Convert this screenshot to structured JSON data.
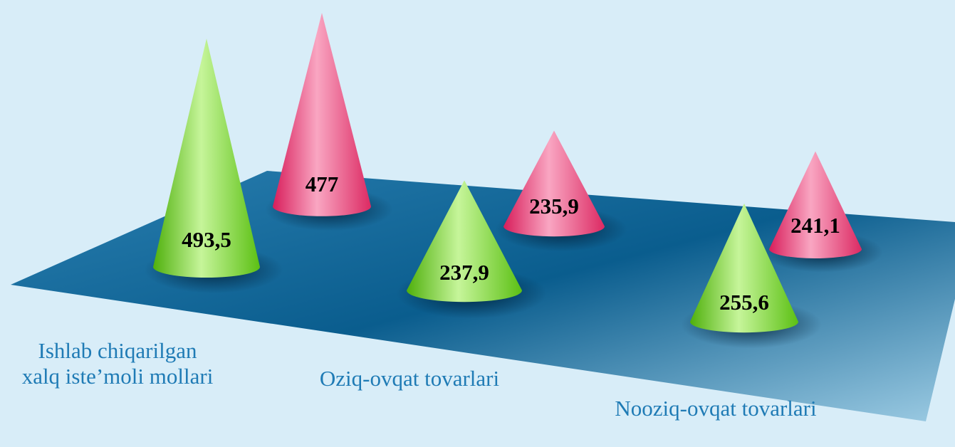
{
  "chart_data": {
    "type": "cone",
    "categories": [
      "Ishlab chiqarilgan xalq iste’moli mollari",
      "Oziq-ovqat tovarlari",
      "Nooziq-ovqat tovarlari"
    ],
    "series": [
      {
        "color": "#7ed321",
        "values": [
          493.5,
          237.9,
          255.6
        ],
        "value_labels": [
          "493,5",
          "237,9",
          "255,6"
        ]
      },
      {
        "color": "#e8336f",
        "values": [
          477,
          235.9,
          241.1
        ],
        "value_labels": [
          "477",
          "235,9",
          "241,1"
        ]
      }
    ]
  }
}
